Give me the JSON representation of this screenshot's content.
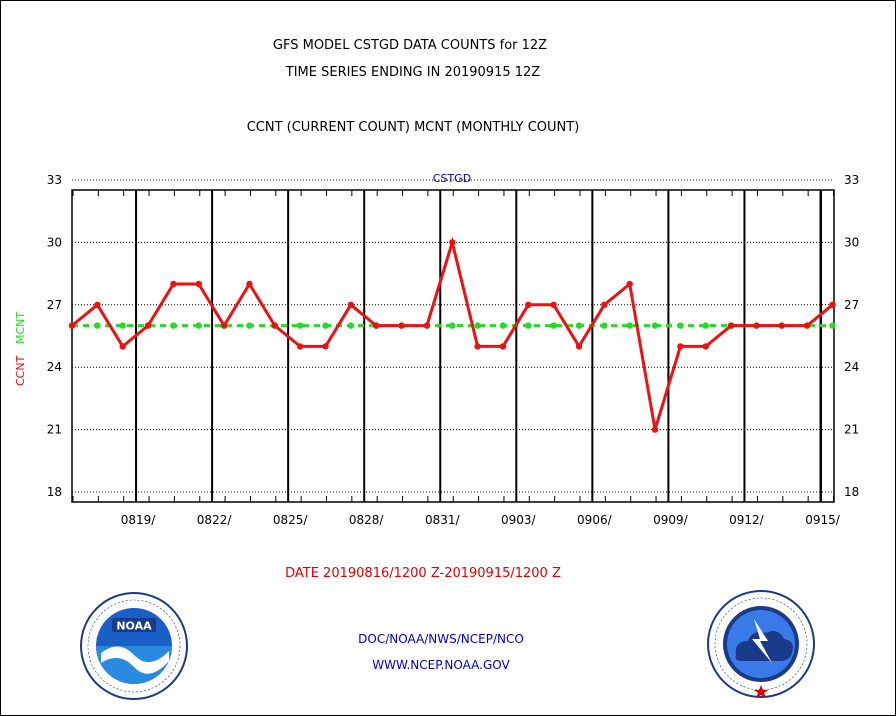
{
  "header": {
    "title_line1": "GFS MODEL CSTGD DATA COUNTS for 12Z",
    "title_line2": "TIME SERIES ENDING IN 20190915 12Z",
    "subtitle": "CCNT (CURRENT COUNT) MCNT (MONTHLY COUNT)"
  },
  "footer": {
    "date_range": "DATE 20190816/1200 Z-20190915/1200 Z",
    "credit_line1": "DOC/NOAA/NWS/NCEP/NCO",
    "credit_line2": "WWW.NCEP.NOAA.GOV"
  },
  "logos": {
    "left_icon": "noaa-logo-icon",
    "left_text": "NOAA",
    "left_ring_text": "NATIONAL OCEANIC AND ATMOSPHERIC ADMINISTRATION · U.S. DEPARTMENT OF COMMERCE",
    "right_icon": "nws-logo-icon",
    "right_ring_text": "NATIONAL WEATHER SERVICE"
  },
  "chart_data": {
    "type": "line",
    "plot_title": "CSTGD",
    "ylabel_ccnt": "CCNT",
    "ylabel_mcnt": "MCNT",
    "ylim": [
      18,
      33
    ],
    "yticks": [
      18,
      21,
      24,
      27,
      30,
      33
    ],
    "x_tick_labels": [
      "0819/",
      "0822/",
      "0825/",
      "0828/",
      "0831/",
      "0903/",
      "0906/",
      "0909/",
      "0912/",
      "0915/"
    ],
    "x_start": "20190816/1200",
    "x_end": "20190915/1200",
    "grid": true,
    "colors": {
      "ccnt": "#ee1111",
      "mcnt": "#22dd22",
      "title": "#0000cc"
    },
    "series": [
      {
        "name": "CCNT",
        "values": [
          26,
          27,
          25,
          26,
          28,
          28,
          26,
          28,
          26,
          25,
          25,
          27,
          26,
          26,
          26,
          30,
          25,
          25,
          27,
          27,
          25,
          27,
          28,
          21,
          25,
          25,
          26,
          26,
          26,
          26,
          27
        ]
      },
      {
        "name": "MCNT",
        "values": [
          26,
          26,
          26,
          26,
          26,
          26,
          26,
          26,
          26,
          26,
          26,
          26,
          26,
          26,
          26,
          26,
          26,
          26,
          26,
          26,
          26,
          26,
          26,
          26,
          26,
          26,
          26,
          26,
          26,
          26,
          26
        ]
      }
    ]
  }
}
